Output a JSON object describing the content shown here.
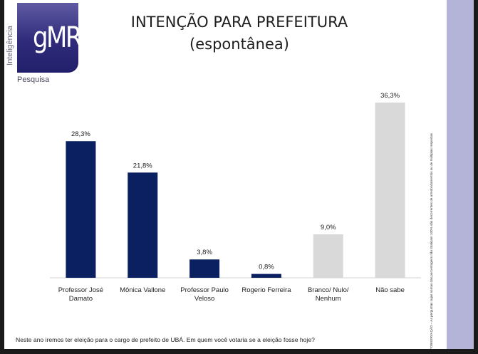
{
  "logo": {
    "brand": "gMR",
    "vertical_text": "Inteligência",
    "sub": "Pesquisa"
  },
  "title": {
    "line1": "INTENÇÃO PARA PREFEITURA",
    "line2": "(espontânea)"
  },
  "side_note": "*OBSERVAÇÃO – As perguntas cujas somas das porcentagens não totalizam 100% são decorrentes de arredondamentos ou de múltiplas respostas",
  "question": "Neste ano iremos ter eleição para o cargo de prefeito de UBÁ. Em quem você votaria se a eleição fosse hoje?",
  "colors": {
    "navy": "#0a2061",
    "gray": "#d9d9d9",
    "sidebar": "#b4b3d8"
  },
  "chart_data": {
    "type": "bar",
    "title": "INTENÇÃO PARA PREFEITURA (espontânea)",
    "categories": [
      [
        "Professor José",
        "Damato"
      ],
      [
        "Mônica Vallone"
      ],
      [
        "Professor Paulo",
        "Veloso"
      ],
      [
        "Rogerio Ferreira"
      ],
      [
        "Branco/ Nulo/",
        "Nenhum"
      ],
      [
        "Não sabe"
      ]
    ],
    "values": [
      28.3,
      21.8,
      3.8,
      0.8,
      9.0,
      36.3
    ],
    "value_labels": [
      "28,3%",
      "21,8%",
      "3,8%",
      "0,8%",
      "9,0%",
      "36,3%"
    ],
    "bar_colors": [
      "#0a2061",
      "#0a2061",
      "#0a2061",
      "#0a2061",
      "#d9d9d9",
      "#d9d9d9"
    ],
    "ylim": [
      0,
      36.3
    ],
    "grid": false,
    "legend": "none"
  }
}
